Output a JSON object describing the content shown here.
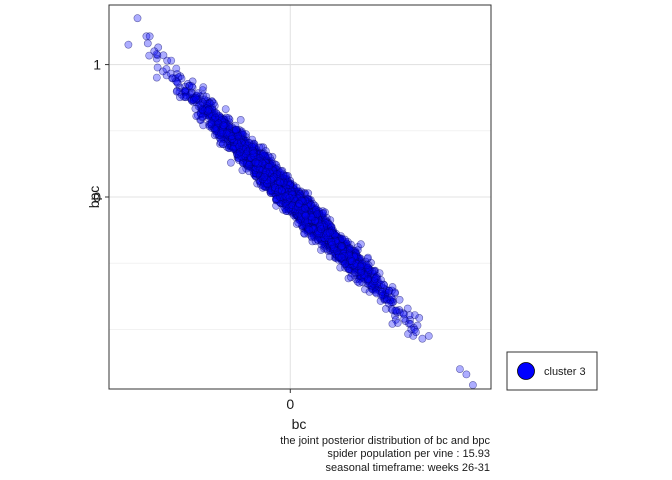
{
  "chart_data": {
    "type": "scatter",
    "xlabel": "bc",
    "ylabel": "bpc",
    "x_ticks": [
      {
        "value": 0,
        "label": "0"
      }
    ],
    "y_ticks": [
      {
        "value": 0,
        "label": "0"
      },
      {
        "value": 1,
        "label": "1"
      }
    ],
    "xlim": [
      -1.4,
      1.55
    ],
    "ylim": [
      -1.45,
      1.45
    ],
    "grid": true,
    "legend_position": "right",
    "series": [
      {
        "name": "cluster 3",
        "color": "#0000ff",
        "n_points": 3500,
        "x_center": 0.0,
        "x_sd": 0.33,
        "slope": -1.0,
        "residual_sd": 0.055,
        "points": [
          [
            -1.18,
            1.35
          ],
          [
            -1.25,
            1.15
          ],
          [
            -1.1,
            1.16
          ],
          [
            -1.02,
            1.13
          ],
          [
            -1.05,
            1.1
          ],
          [
            -0.98,
            1.07
          ],
          [
            1.31,
            -1.3
          ],
          [
            1.36,
            -1.34
          ],
          [
            1.41,
            -1.42
          ],
          [
            0.97,
            -1.02
          ],
          [
            1.02,
            -1.07
          ],
          [
            1.07,
            -1.05
          ],
          [
            -0.92,
            1.03
          ],
          [
            -0.88,
            0.97
          ]
        ]
      }
    ],
    "caption": [
      "the joint posterior distribution of bc and bpc",
      "spider population per vine : 15.93",
      "seasonal timeframe: weeks 26-31"
    ]
  }
}
